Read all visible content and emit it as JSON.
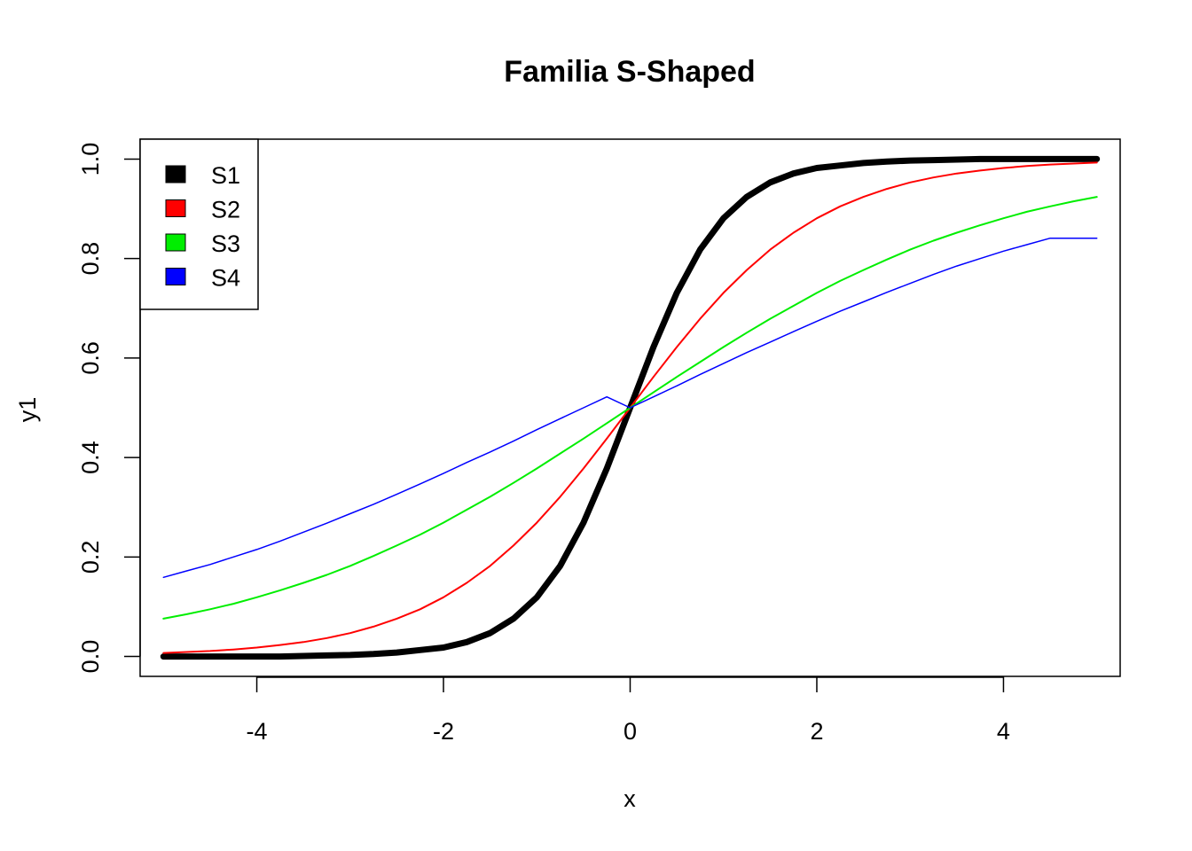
{
  "chart_data": {
    "type": "line",
    "title": "Familia S-Shaped",
    "xlabel": "x",
    "ylabel": "y1",
    "xlim": [
      -5.25,
      5.25
    ],
    "ylim": [
      -0.04,
      1.04
    ],
    "x_ticks": [
      -4,
      -2,
      0,
      2,
      4
    ],
    "x_tick_labels": [
      "-4",
      "-2",
      "0",
      "2",
      "4"
    ],
    "y_ticks": [
      0.0,
      0.2,
      0.4,
      0.6,
      0.8,
      1.0
    ],
    "y_tick_labels": [
      "0.0",
      "0.2",
      "0.4",
      "0.6",
      "0.8",
      "1.0"
    ],
    "grid": false,
    "legend_position": "top-left",
    "x": [
      -5,
      -4.75,
      -4.5,
      -4.25,
      -4,
      -3.75,
      -3.5,
      -3.25,
      -3,
      -2.75,
      -2.5,
      -2.25,
      -2,
      -1.75,
      -1.5,
      -1.25,
      -1,
      -0.75,
      -0.5,
      -0.25,
      0,
      0.25,
      0.5,
      0.75,
      1,
      1.25,
      1.5,
      1.75,
      2,
      2.25,
      2.5,
      2.75,
      3,
      3.25,
      3.5,
      3.75,
      4,
      4.25,
      4.5,
      4.75,
      5
    ],
    "series": [
      {
        "name": "S1",
        "color": "#000000",
        "values": [
          0.0,
          0.0,
          0.0,
          0.0,
          0.0,
          0.0,
          0.001,
          0.002,
          0.003,
          0.005,
          0.008,
          0.013,
          0.018,
          0.029,
          0.047,
          0.076,
          0.119,
          0.182,
          0.269,
          0.378,
          0.5,
          0.622,
          0.731,
          0.818,
          0.881,
          0.924,
          0.953,
          0.971,
          0.982,
          0.987,
          0.992,
          0.995,
          0.997,
          0.998,
          0.999,
          1.0,
          1.0,
          1.0,
          1.0,
          1.0,
          1.0
        ]
      },
      {
        "name": "S2",
        "color": "#ff0000",
        "values": [
          0.007,
          0.009,
          0.011,
          0.014,
          0.018,
          0.023,
          0.029,
          0.037,
          0.047,
          0.06,
          0.076,
          0.095,
          0.119,
          0.148,
          0.182,
          0.223,
          0.269,
          0.321,
          0.378,
          0.438,
          0.5,
          0.562,
          0.622,
          0.679,
          0.731,
          0.777,
          0.818,
          0.852,
          0.881,
          0.905,
          0.924,
          0.94,
          0.953,
          0.963,
          0.971,
          0.977,
          0.982,
          0.986,
          0.989,
          0.991,
          0.993
        ]
      },
      {
        "name": "S3",
        "color": "#00ee00",
        "values": [
          0.076,
          0.085,
          0.095,
          0.106,
          0.119,
          0.133,
          0.148,
          0.164,
          0.182,
          0.202,
          0.223,
          0.245,
          0.269,
          0.295,
          0.321,
          0.349,
          0.378,
          0.408,
          0.438,
          0.469,
          0.5,
          0.531,
          0.562,
          0.592,
          0.622,
          0.651,
          0.679,
          0.705,
          0.731,
          0.755,
          0.777,
          0.798,
          0.818,
          0.836,
          0.852,
          0.867,
          0.881,
          0.894,
          0.905,
          0.915,
          0.924
        ]
      },
      {
        "name": "S4",
        "color": "#0000ff",
        "values": [
          0.159,
          0.172,
          0.185,
          0.2,
          0.215,
          0.232,
          0.25,
          0.268,
          0.287,
          0.306,
          0.326,
          0.347,
          0.368,
          0.39,
          0.411,
          0.433,
          0.456,
          0.478,
          0.5,
          0.522,
          0.5,
          0.522,
          0.544,
          0.567,
          0.589,
          0.611,
          0.632,
          0.653,
          0.674,
          0.694,
          0.713,
          0.732,
          0.75,
          0.768,
          0.785,
          0.8,
          0.815,
          0.828,
          0.841,
          0.841,
          0.841
        ]
      }
    ]
  }
}
